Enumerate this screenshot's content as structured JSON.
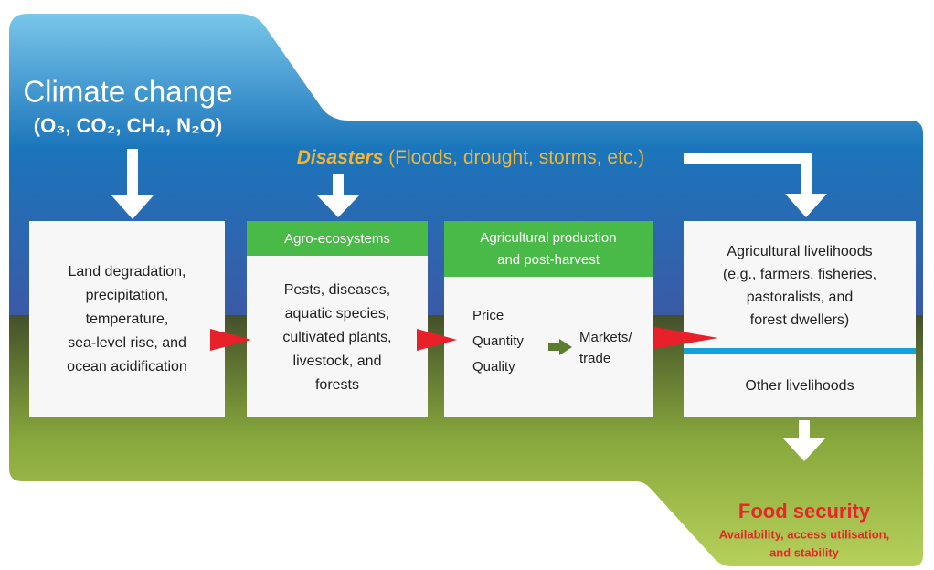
{
  "title": "Climate change",
  "gases": "(O₃, CO₂, CH₄, N₂O)",
  "disasters": {
    "label": "Disasters",
    "detail": "(Floods, drought, storms, etc.)"
  },
  "boxes": [
    {
      "lines": [
        "Land degradation,",
        "precipitation,",
        "temperature,",
        "sea-level rise, and",
        "ocean acidification"
      ]
    },
    {
      "header": [
        "Agro-ecosystems"
      ],
      "lines": [
        "Pests, diseases,",
        "aquatic species,",
        "cultivated plants,",
        "livestock, and",
        "forests"
      ]
    },
    {
      "header": [
        "Agricultural production",
        "and post-harvest"
      ],
      "items": [
        "Price",
        "Quantity",
        "Quality"
      ],
      "outcome": [
        "Markets/",
        "trade"
      ]
    },
    {
      "lines": [
        "Agricultural livelihoods",
        "(e.g., farmers, fisheries,",
        "pastoralists, and",
        "forest dwellers)"
      ],
      "other": "Other livelihoods"
    }
  ],
  "food_security": {
    "title": "Food security",
    "lines": [
      "Availability, access utilisation,",
      "and stability"
    ]
  }
}
